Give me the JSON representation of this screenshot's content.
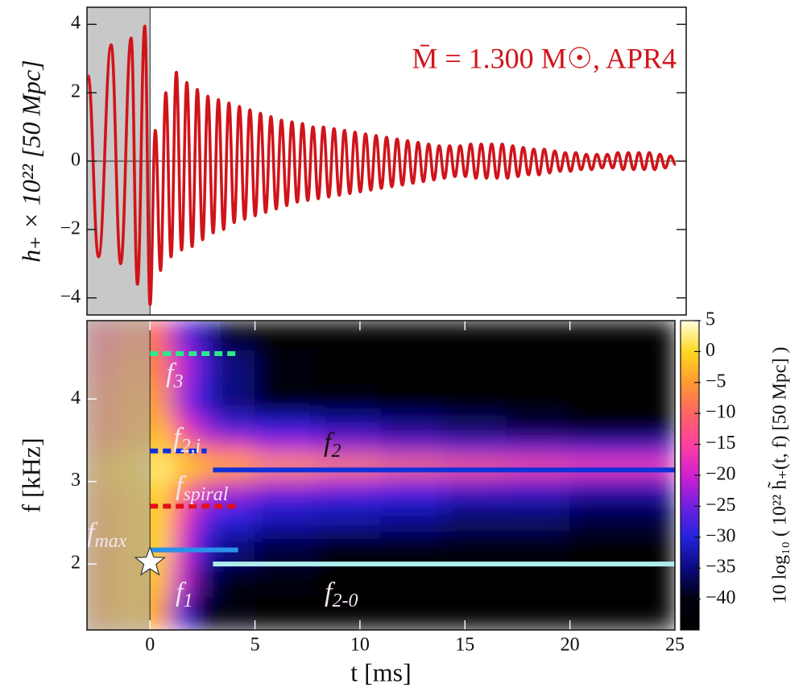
{
  "chart_data": [
    {
      "type": "line",
      "annotation": "M̄ = 1.300 M☉,  APR4",
      "y_label": "h₊ × 10²² [50 Mpc]",
      "color": "#d0141a",
      "inspiral_region": [
        -3,
        0
      ],
      "xlim": [
        -3,
        25.5
      ],
      "ylim": [
        -4.5,
        4.5
      ],
      "yticks": [
        {
          "value": -4,
          "label": "−4"
        },
        {
          "value": -2,
          "label": "−2"
        },
        0,
        2,
        4
      ],
      "x": [
        -2.95,
        -2.45,
        -1.85,
        -1.4,
        -0.9,
        -0.6,
        -0.25,
        0,
        0.25,
        0.5,
        0.75,
        1,
        1.25,
        1.5,
        1.75,
        2,
        2.25,
        2.5,
        2.75,
        3,
        3.25,
        3.5,
        3.75,
        4,
        4.25,
        4.5,
        4.75,
        5,
        5.25,
        5.5,
        5.75,
        6,
        6.25,
        6.5,
        6.75,
        7,
        7.25,
        7.5,
        7.75,
        8,
        8.25,
        8.5,
        8.75,
        9,
        9.25,
        9.5,
        9.75,
        10,
        10.25,
        10.5,
        10.75,
        11,
        11.25,
        11.5,
        11.75,
        12,
        12.25,
        12.5,
        12.75,
        13,
        13.25,
        13.5,
        13.75,
        14,
        14.25,
        14.5,
        14.75,
        15,
        15.25,
        15.5,
        15.75,
        16,
        16.25,
        16.5,
        16.75,
        17,
        17.25,
        17.5,
        17.75,
        18,
        18.25,
        18.5,
        18.75,
        19,
        19.25,
        19.5,
        19.75,
        20,
        20.25,
        20.5,
        20.75,
        21,
        21.25,
        21.5,
        21.75,
        22,
        22.25,
        22.5,
        22.75,
        23,
        23.25,
        23.5,
        23.75,
        24,
        24.25,
        24.5,
        24.75,
        25
      ],
      "values": [
        2.5,
        -2.8,
        3.4,
        -3.0,
        3.6,
        -3.6,
        3.95,
        -4.2,
        0.9,
        -3.2,
        2.0,
        -2.8,
        2.6,
        -2.6,
        2.3,
        -2.5,
        2.1,
        -2.3,
        1.9,
        -2.1,
        1.8,
        -2.0,
        1.7,
        -1.8,
        1.6,
        -1.7,
        1.5,
        -1.6,
        1.4,
        -1.5,
        1.3,
        -1.4,
        1.2,
        -1.3,
        1.15,
        -1.2,
        1.1,
        -1.15,
        1.0,
        -1.1,
        1.0,
        -1.05,
        0.95,
        -1.0,
        0.9,
        -0.95,
        0.85,
        -0.9,
        0.8,
        -0.85,
        0.75,
        -0.8,
        0.7,
        -0.75,
        0.65,
        -0.7,
        0.6,
        -0.65,
        0.55,
        -0.6,
        0.5,
        -0.55,
        0.45,
        -0.5,
        0.45,
        -0.45,
        0.45,
        -0.45,
        0.5,
        -0.5,
        0.5,
        -0.5,
        0.5,
        -0.5,
        0.5,
        -0.5,
        0.45,
        -0.45,
        0.4,
        -0.4,
        0.35,
        -0.4,
        0.35,
        -0.35,
        0.3,
        -0.3,
        0.25,
        -0.3,
        0.25,
        -0.25,
        0.2,
        -0.25,
        0.2,
        -0.2,
        0.2,
        -0.2,
        0.25,
        -0.25,
        0.25,
        -0.25,
        0.25,
        -0.25,
        0.25,
        -0.25,
        0.2,
        -0.2,
        0.15,
        -0.1
      ]
    },
    {
      "type": "heatmap",
      "x_label": "t [ms]",
      "y_label": "f [kHz]",
      "colorbar_label": "10 log₁₀ ( 10²² h̃₊(t, f)  [50 Mpc] )",
      "inspiral_region": [
        -3,
        0
      ],
      "xlim": [
        -3,
        25
      ],
      "ylim": [
        1.2,
        4.95
      ],
      "xticks": [
        0,
        5,
        10,
        15,
        20,
        25
      ],
      "yticks": [
        2,
        3,
        4
      ],
      "clim": [
        -45,
        5
      ],
      "cticks": [
        5,
        0,
        {
          "value": -5,
          "label": "−5"
        },
        {
          "value": -10,
          "label": "−10"
        },
        {
          "value": -15,
          "label": "−15"
        },
        {
          "value": -20,
          "label": "−20"
        },
        {
          "value": -25,
          "label": "−25"
        },
        {
          "value": -30,
          "label": "−30"
        },
        {
          "value": -35,
          "label": "−35"
        },
        {
          "value": -40,
          "label": "−40"
        }
      ],
      "colormap": [
        "#000000",
        "#00000e",
        "#0a0a80",
        "#2323e0",
        "#7020e0",
        "#d020d0",
        "#ff40a0",
        "#ff6464",
        "#ff9a30",
        "#ffd820",
        "#ffffe0"
      ],
      "x_edges": [
        -3,
        -1.5,
        0,
        1,
        2,
        3,
        5,
        8,
        11,
        14,
        17,
        20,
        25
      ],
      "y_edges": [
        1.2,
        1.6,
        2.0,
        2.4,
        2.7,
        2.95,
        3.1,
        3.3,
        3.5,
        3.8,
        4.2,
        4.6,
        4.95
      ],
      "z": [
        [
          -5,
          -2,
          -5,
          -28,
          -40,
          -42,
          -44,
          -44,
          -44,
          -44,
          -44,
          -44
        ],
        [
          -5,
          -2,
          -2,
          -20,
          -35,
          -40,
          -42,
          -43,
          -44,
          -44,
          -44,
          -44
        ],
        [
          -5,
          -2,
          0,
          -18,
          -30,
          -35,
          -38,
          -40,
          -40,
          -42,
          -42,
          -43
        ],
        [
          -5,
          -2,
          0,
          -15,
          -25,
          -30,
          -32,
          -33,
          -34,
          -36,
          -36,
          -38
        ],
        [
          -5,
          -2,
          0,
          -10,
          -20,
          -24,
          -28,
          -30,
          -30,
          -32,
          -32,
          -34
        ],
        [
          -3,
          -1,
          2,
          -3,
          -8,
          -12,
          -18,
          -20,
          -22,
          -23,
          -24,
          -26
        ],
        [
          -3,
          0,
          3,
          0,
          -2,
          -3,
          -5,
          -7,
          -9,
          -11,
          -13,
          -15
        ],
        [
          -6,
          -3,
          0,
          -5,
          -10,
          -14,
          -20,
          -22,
          -24,
          -26,
          -26,
          -28
        ],
        [
          -8,
          -5,
          -2,
          -15,
          -22,
          -28,
          -30,
          -32,
          -34,
          -36,
          -38,
          -40
        ],
        [
          -8,
          -5,
          -5,
          -22,
          -30,
          -35,
          -40,
          -42,
          -43,
          -44,
          -44,
          -44
        ],
        [
          -10,
          -6,
          -8,
          -20,
          -28,
          -35,
          -42,
          -44,
          -44,
          -44,
          -44,
          -44
        ],
        [
          -12,
          -8,
          -10,
          -25,
          -32,
          -40,
          -44,
          -44,
          -44,
          -44,
          -44,
          -44
        ]
      ],
      "lines": [
        {
          "y": 4.55,
          "x": [
            0,
            4.1
          ],
          "color": "#2ee88a",
          "dashed": true,
          "label": {
            "text": "f",
            "sub": "3"
          }
        },
        {
          "y": 3.37,
          "x": [
            0,
            2.7
          ],
          "color": "#1030e0",
          "dashed": true,
          "label": {
            "text": "f",
            "sub": "2,i"
          }
        },
        {
          "y": 3.14,
          "x": [
            3,
            25
          ],
          "color": "#1030d8",
          "dashed": false,
          "label": {
            "text": "f",
            "sub": "2"
          }
        },
        {
          "y": 2.7,
          "x": [
            0,
            4.1
          ],
          "color": "#e0101a",
          "dashed": true,
          "label": {
            "text": "f",
            "sub": "spiral"
          }
        },
        {
          "y": 2.17,
          "x": [
            0,
            4.2
          ],
          "color": "#2a90e8",
          "dashed": false,
          "label": {
            "text": "f",
            "sub": "max"
          }
        },
        {
          "y": 2.0,
          "x": [
            3,
            25
          ],
          "color": "#b0eeee",
          "dashed": false,
          "label": {
            "text": "f",
            "sub": "2-0"
          }
        }
      ],
      "points": [
        {
          "x": 0,
          "y": 2.02,
          "label": {
            "text": "f",
            "sub": "1"
          }
        }
      ]
    }
  ]
}
